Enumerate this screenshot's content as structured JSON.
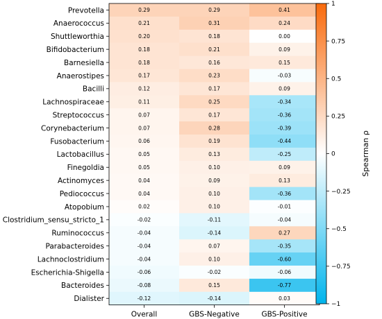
{
  "chart_data": {
    "type": "heatmap",
    "title": "",
    "xlabel": "",
    "ylabel": "",
    "columns": [
      "Overall",
      "GBS-Negative",
      "GBS-Positive"
    ],
    "rows": [
      "Prevotella",
      "Anaerococcus",
      "Shuttleworthia",
      "Bifidobacterium",
      "Barnesiella",
      "Anaerostipes",
      "Bacilli",
      "Lachnospiraceae",
      "Streptococcus",
      "Corynebacterium",
      "Fusobacterium",
      "Lactobacillus",
      "Finegoldia",
      "Actinomyces",
      "Pediococcus",
      "Atopobium",
      "Clostridium_sensu_stricto_1",
      "Ruminococcus",
      "Parabacteroides",
      "Lachnoclostridium",
      "Escherichia-Shigella",
      "Bacteroides",
      "Dialister"
    ],
    "values": [
      [
        0.29,
        0.29,
        0.41
      ],
      [
        0.21,
        0.31,
        0.24
      ],
      [
        0.2,
        0.18,
        0.0
      ],
      [
        0.18,
        0.21,
        0.09
      ],
      [
        0.18,
        0.16,
        0.15
      ],
      [
        0.17,
        0.23,
        -0.03
      ],
      [
        0.12,
        0.17,
        0.09
      ],
      [
        0.11,
        0.25,
        -0.34
      ],
      [
        0.07,
        0.17,
        -0.36
      ],
      [
        0.07,
        0.28,
        -0.39
      ],
      [
        0.06,
        0.19,
        -0.44
      ],
      [
        0.05,
        0.13,
        -0.25
      ],
      [
        0.05,
        0.1,
        0.09
      ],
      [
        0.04,
        0.09,
        0.13
      ],
      [
        0.04,
        0.1,
        -0.36
      ],
      [
        0.02,
        0.1,
        -0.01
      ],
      [
        -0.02,
        -0.11,
        -0.04
      ],
      [
        -0.04,
        -0.14,
        0.27
      ],
      [
        -0.04,
        0.07,
        -0.35
      ],
      [
        -0.04,
        0.1,
        -0.6
      ],
      [
        -0.06,
        -0.02,
        -0.06
      ],
      [
        -0.08,
        0.15,
        -0.77
      ],
      [
        -0.12,
        -0.14,
        0.03
      ]
    ],
    "colorbar": {
      "label": "Spearman ρ",
      "min": -1,
      "max": 1,
      "ticks": [
        1,
        0.75,
        0.5,
        0.25,
        0,
        -0.25,
        -0.5,
        -0.75,
        -1
      ],
      "tick_labels": [
        "1",
        "0.75",
        "0.5",
        "0.25",
        "0",
        "−0.25",
        "−0.5",
        "−0.75",
        "−1"
      ],
      "colors": {
        "negative": "#00b4ec",
        "zero": "#ffffff",
        "positive": "#f96a0c"
      }
    }
  }
}
